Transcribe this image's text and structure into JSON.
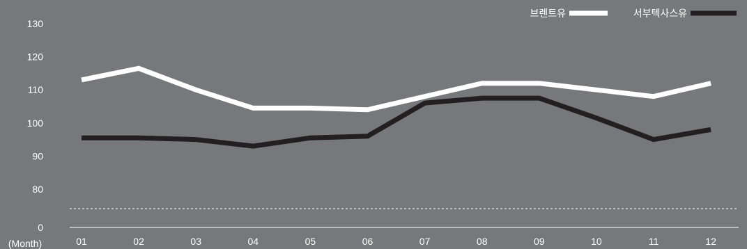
{
  "chart_data": {
    "type": "line",
    "title": "",
    "xlabel": "(Month)",
    "ylabel": "",
    "categories": [
      "01",
      "02",
      "03",
      "04",
      "05",
      "06",
      "07",
      "08",
      "09",
      "10",
      "11",
      "12"
    ],
    "y_ticks": [
      "0",
      "80",
      "90",
      "100",
      "110",
      "120",
      "130"
    ],
    "ylim": [
      75,
      130
    ],
    "axis_break": true,
    "legend_position": "top-right",
    "grid": false,
    "series": [
      {
        "name": "브렌트유",
        "color": "#ffffff",
        "values": [
          113,
          116.5,
          110,
          104.5,
          104.5,
          104,
          108,
          112,
          112,
          110,
          108,
          112
        ]
      },
      {
        "name": "서부텍사스유",
        "color": "#231f20",
        "values": [
          95.5,
          95.5,
          95,
          93,
          95.5,
          96,
          106,
          107.5,
          107.5,
          101.5,
          95,
          98
        ]
      }
    ]
  }
}
